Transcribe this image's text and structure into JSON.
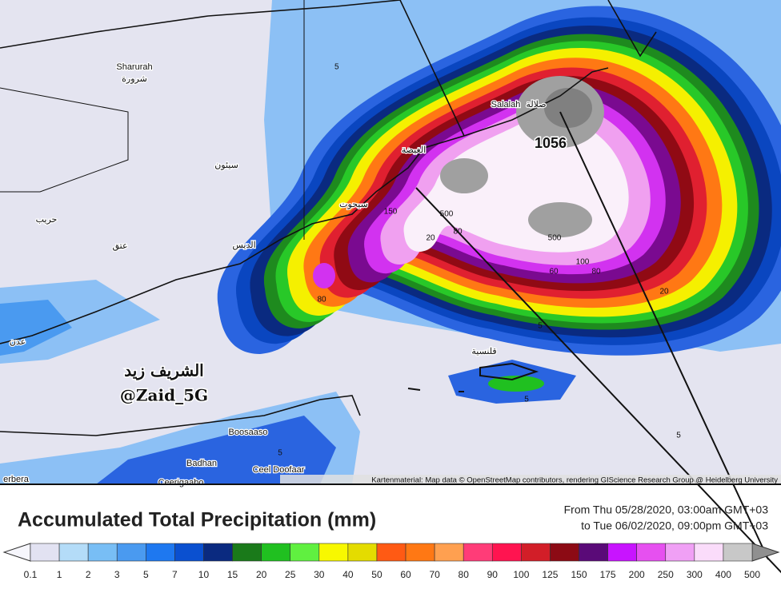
{
  "places": [
    "Sharurah",
    "شرورة",
    "سيئون",
    "حريب",
    "عتق",
    "عدن",
    "الديس",
    "سيحوت",
    "الغيضة",
    "Salalah",
    "صلالة",
    "قلنسية",
    "Boosaaso",
    "Badhan",
    "Ceel Doofaar",
    "erbera",
    "Ceerigaabo"
  ],
  "contours": [
    "5",
    "1056",
    "500",
    "150",
    "80",
    "20",
    "500",
    "100",
    "60",
    "80",
    "20",
    "80",
    "5",
    "5",
    "5",
    "5"
  ],
  "watermark": [
    "الشريف زيد",
    "@Zaid_5G"
  ],
  "attribution": "Kartenmaterial: Map data © OpenStreetMap contributors, rendering GIScience Research Group @ Heidelberg University",
  "legend": {
    "title": "Accumulated Total Precipitation (mm)",
    "period": [
      "From Thu 05/28/2020, 03:00am GMT+03",
      "to Tue 06/02/2020, 09:00pm GMT+03"
    ],
    "ticks": [
      "0.1",
      "1",
      "2",
      "3",
      "5",
      "7",
      "10",
      "15",
      "20",
      "25",
      "30",
      "40",
      "50",
      "60",
      "70",
      "80",
      "90",
      "100",
      "125",
      "150",
      "175",
      "200",
      "250",
      "300",
      "400",
      "500"
    ],
    "colors": [
      "#e2e2f2",
      "#b4dcf8",
      "#78bef5",
      "#4a9af0",
      "#1e78f0",
      "#0a50d0",
      "#0a2a80",
      "#1a7a1a",
      "#20c020",
      "#60f040",
      "#f8f800",
      "#e4dc00",
      "#ff5a14",
      "#ff7814",
      "#ffa050",
      "#ff3c78",
      "#ff1450",
      "#d21e28",
      "#8c0a14",
      "#5a0a78",
      "#c814ff",
      "#e650f0",
      "#f0a0f5",
      "#fadcfa",
      "#c8c8c8"
    ]
  }
}
